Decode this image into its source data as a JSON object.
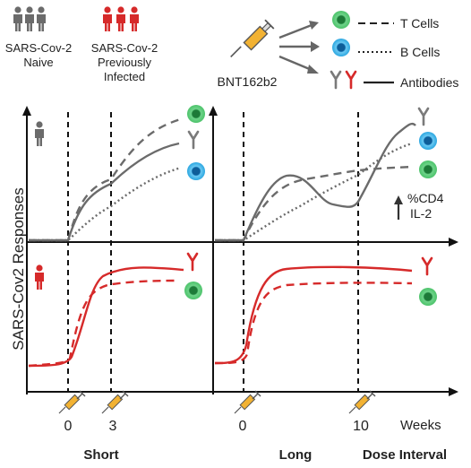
{
  "legend": {
    "naive_label_1": "SARS-Cov-2",
    "naive_label_2": "Naive",
    "infected_label_1": "SARS-Cov-2",
    "infected_label_2": "Previously",
    "infected_label_3": "Infected",
    "vaccine_label": "BNT162b2",
    "t_cells": "T Cells",
    "b_cells": "B Cells",
    "antibodies": "Antibodies"
  },
  "y_axis_label": "SARS-Cov2 Responses",
  "annotation": {
    "line1": "%CD4",
    "line2": "IL-2"
  },
  "x_axis": {
    "short_dose1": "0",
    "short_dose2": "3",
    "long_dose1": "0",
    "long_dose2": "10",
    "unit": "Weeks"
  },
  "footer": {
    "short": "Short",
    "long": "Long",
    "dose_interval": "Dose Interval"
  },
  "colors": {
    "naive": "#6b6b6b",
    "infected": "#d62a2a",
    "t_cell": "#4cc36a",
    "b_cell": "#2aa6e0",
    "antibody_grey": "#8a8a8a",
    "antibody_red": "#d62a2a"
  }
}
